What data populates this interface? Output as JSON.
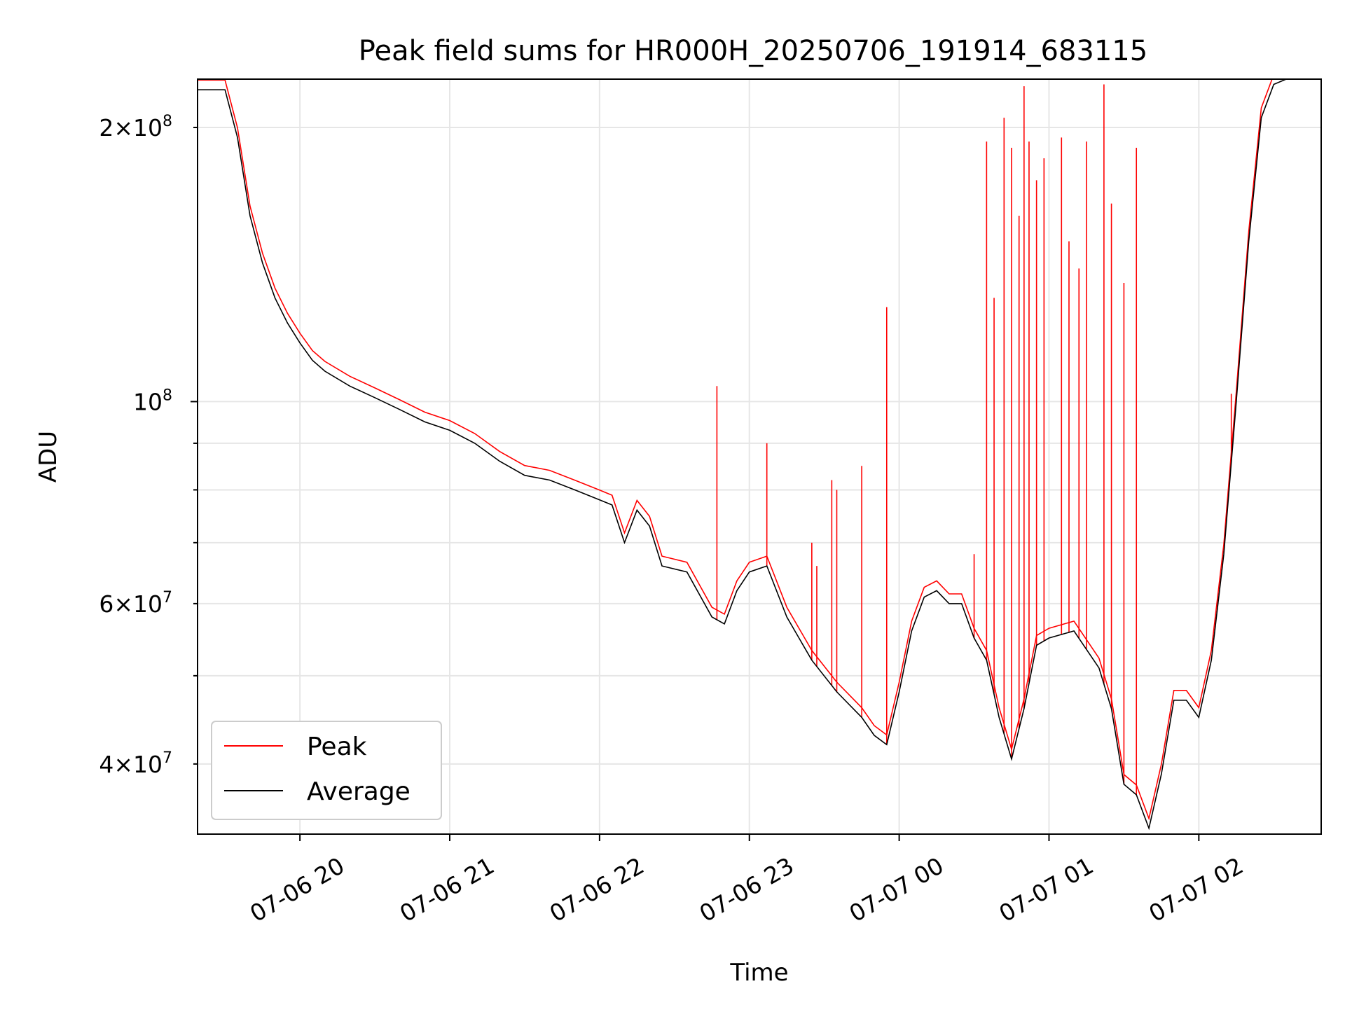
{
  "chart_data": {
    "type": "line",
    "title": "Peak field sums for HR000H_20250706_191914_683115",
    "xlabel": "Time",
    "ylabel": "ADU",
    "yscale": "log",
    "ylim": [
      33500000,
      226000000
    ],
    "xlim": [
      "2025-07-06 19:19:00",
      "2025-07-07 02:49:00"
    ],
    "grid": true,
    "legend_location": "lower-left",
    "x_ticks": [
      {
        "label": "07-06 20",
        "time": "2025-07-06 20:00"
      },
      {
        "label": "07-06 21",
        "time": "2025-07-06 21:00"
      },
      {
        "label": "07-06 22",
        "time": "2025-07-06 22:00"
      },
      {
        "label": "07-06 23",
        "time": "2025-07-06 23:00"
      },
      {
        "label": "07-07 00",
        "time": "2025-07-07 00:00"
      },
      {
        "label": "07-07 01",
        "time": "2025-07-07 01:00"
      },
      {
        "label": "07-07 02",
        "time": "2025-07-07 02:00"
      }
    ],
    "y_ticks_major": [
      {
        "value": 100000000,
        "mantissa": "",
        "exponent": "8"
      }
    ],
    "y_ticks_minor": [
      {
        "value": 40000000,
        "mantissa": "4",
        "exponent": "7"
      },
      {
        "value": 50000000,
        "mantissa": "",
        "exponent": ""
      },
      {
        "value": 60000000,
        "mantissa": "6",
        "exponent": "7"
      },
      {
        "value": 70000000,
        "mantissa": "",
        "exponent": ""
      },
      {
        "value": 80000000,
        "mantissa": "",
        "exponent": ""
      },
      {
        "value": 90000000,
        "mantissa": "",
        "exponent": ""
      },
      {
        "value": 200000000,
        "mantissa": "2",
        "exponent": "8"
      }
    ],
    "series": [
      {
        "name": "Average",
        "color": "#000000",
        "points": [
          [
            "2025-07-06 19:19",
            220000000
          ],
          [
            "2025-07-06 19:30",
            220000000
          ],
          [
            "2025-07-06 19:35",
            195000000
          ],
          [
            "2025-07-06 19:40",
            160000000
          ],
          [
            "2025-07-06 19:45",
            142000000
          ],
          [
            "2025-07-06 19:50",
            130000000
          ],
          [
            "2025-07-06 19:55",
            122000000
          ],
          [
            "2025-07-06 20:00",
            116000000
          ],
          [
            "2025-07-06 20:05",
            111000000
          ],
          [
            "2025-07-06 20:10",
            108000000
          ],
          [
            "2025-07-06 20:20",
            104000000
          ],
          [
            "2025-07-06 20:30",
            101000000
          ],
          [
            "2025-07-06 20:40",
            98000000
          ],
          [
            "2025-07-06 20:50",
            95000000
          ],
          [
            "2025-07-06 21:00",
            93000000
          ],
          [
            "2025-07-06 21:10",
            90000000
          ],
          [
            "2025-07-06 21:20",
            86000000
          ],
          [
            "2025-07-06 21:30",
            83000000
          ],
          [
            "2025-07-06 21:40",
            82000000
          ],
          [
            "2025-07-06 21:50",
            80000000
          ],
          [
            "2025-07-06 22:00",
            78000000
          ],
          [
            "2025-07-06 22:05",
            77000000
          ],
          [
            "2025-07-06 22:10",
            70000000
          ],
          [
            "2025-07-06 22:15",
            76000000
          ],
          [
            "2025-07-06 22:20",
            73000000
          ],
          [
            "2025-07-06 22:25",
            66000000
          ],
          [
            "2025-07-06 22:35",
            65000000
          ],
          [
            "2025-07-06 22:45",
            58000000
          ],
          [
            "2025-07-06 22:50",
            57000000
          ],
          [
            "2025-07-06 22:55",
            62000000
          ],
          [
            "2025-07-06 23:00",
            65000000
          ],
          [
            "2025-07-06 23:07",
            66000000
          ],
          [
            "2025-07-06 23:15",
            58000000
          ],
          [
            "2025-07-06 23:25",
            52000000
          ],
          [
            "2025-07-06 23:35",
            48000000
          ],
          [
            "2025-07-06 23:45",
            45000000
          ],
          [
            "2025-07-06 23:50",
            43000000
          ],
          [
            "2025-07-06 23:55",
            42000000
          ],
          [
            "2025-07-07 00:00",
            48000000
          ],
          [
            "2025-07-07 00:05",
            56000000
          ],
          [
            "2025-07-07 00:10",
            61000000
          ],
          [
            "2025-07-07 00:15",
            62000000
          ],
          [
            "2025-07-07 00:20",
            60000000
          ],
          [
            "2025-07-07 00:25",
            60000000
          ],
          [
            "2025-07-07 00:30",
            55000000
          ],
          [
            "2025-07-07 00:35",
            52000000
          ],
          [
            "2025-07-07 00:40",
            45000000
          ],
          [
            "2025-07-07 00:45",
            40500000
          ],
          [
            "2025-07-07 00:50",
            46000000
          ],
          [
            "2025-07-07 00:55",
            54000000
          ],
          [
            "2025-07-07 01:00",
            55000000
          ],
          [
            "2025-07-07 01:10",
            56000000
          ],
          [
            "2025-07-07 01:20",
            51000000
          ],
          [
            "2025-07-07 01:25",
            46000000
          ],
          [
            "2025-07-07 01:30",
            38000000
          ],
          [
            "2025-07-07 01:35",
            37000000
          ],
          [
            "2025-07-07 01:40",
            34000000
          ],
          [
            "2025-07-07 01:45",
            39000000
          ],
          [
            "2025-07-07 01:50",
            47000000
          ],
          [
            "2025-07-07 01:55",
            47000000
          ],
          [
            "2025-07-07 02:00",
            45000000
          ],
          [
            "2025-07-07 02:05",
            52000000
          ],
          [
            "2025-07-07 02:10",
            68000000
          ],
          [
            "2025-07-07 02:15",
            100000000
          ],
          [
            "2025-07-07 02:20",
            150000000
          ],
          [
            "2025-07-07 02:25",
            205000000
          ],
          [
            "2025-07-07 02:30",
            223000000
          ],
          [
            "2025-07-07 02:35",
            226000000
          ]
        ]
      },
      {
        "name": "Peak",
        "color": "#ff0000",
        "spikes": [
          [
            "2025-07-06 22:47",
            104000000
          ],
          [
            "2025-07-06 23:07",
            90000000
          ],
          [
            "2025-07-06 23:25",
            70000000
          ],
          [
            "2025-07-06 23:27",
            66000000
          ],
          [
            "2025-07-06 23:33",
            82000000
          ],
          [
            "2025-07-06 23:35",
            80000000
          ],
          [
            "2025-07-06 23:45",
            85000000
          ],
          [
            "2025-07-06 23:55",
            127000000
          ],
          [
            "2025-07-07 00:30",
            68000000
          ],
          [
            "2025-07-07 00:35",
            193000000
          ],
          [
            "2025-07-07 00:38",
            130000000
          ],
          [
            "2025-07-07 00:42",
            205000000
          ],
          [
            "2025-07-07 00:45",
            190000000
          ],
          [
            "2025-07-07 00:48",
            160000000
          ],
          [
            "2025-07-07 00:50",
            222000000
          ],
          [
            "2025-07-07 00:52",
            193000000
          ],
          [
            "2025-07-07 00:55",
            175000000
          ],
          [
            "2025-07-07 00:58",
            185000000
          ],
          [
            "2025-07-07 01:05",
            195000000
          ],
          [
            "2025-07-07 01:08",
            150000000
          ],
          [
            "2025-07-07 01:12",
            140000000
          ],
          [
            "2025-07-07 01:15",
            193000000
          ],
          [
            "2025-07-07 01:22",
            223000000
          ],
          [
            "2025-07-07 01:25",
            165000000
          ],
          [
            "2025-07-07 01:30",
            135000000
          ],
          [
            "2025-07-07 01:35",
            190000000
          ],
          [
            "2025-07-07 02:13",
            102000000
          ]
        ]
      }
    ],
    "legend": [
      {
        "label": "Peak",
        "color": "#ff0000"
      },
      {
        "label": "Average",
        "color": "#000000"
      }
    ]
  }
}
